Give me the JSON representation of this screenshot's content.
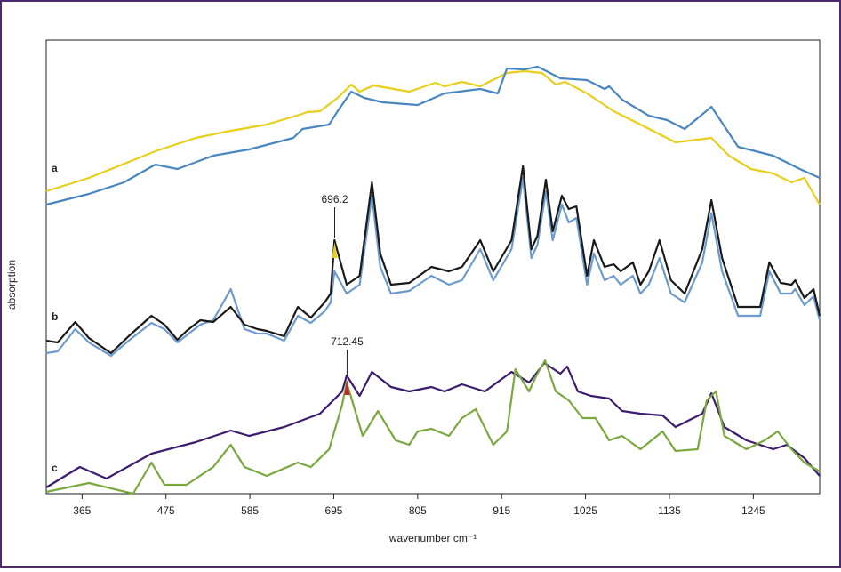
{
  "chart_data": {
    "type": "line",
    "y_label": "absorption",
    "x_label": "wavenumber cm⁻¹",
    "panel_labels": [
      "a",
      "b",
      "c"
    ],
    "xlim": [
      318,
      1332
    ],
    "xticks": [
      365,
      475,
      585,
      695,
      805,
      915,
      1025,
      1135,
      1245
    ],
    "ylim": [
      0,
      510
    ],
    "annotations": [
      {
        "x": 696.2,
        "label": "696.2",
        "color": "#e8cf1d"
      },
      {
        "x": 712.45,
        "label": "712.45",
        "color": "#c0282d"
      }
    ],
    "series": [
      {
        "color": "#e8cf1d",
        "x": [
          318,
          374,
          409,
          461,
          514,
          560,
          607,
          654,
          660,
          677,
          700,
          718,
          729,
          747,
          794,
          828,
          840,
          863,
          887,
          922,
          945,
          968,
          986,
          998,
          1027,
          1062,
          1097,
          1143,
          1190,
          1213,
          1242,
          1271,
          1295,
          1312,
          1332
        ],
        "values": [
          340,
          355,
          367,
          385,
          400,
          408,
          415,
          427,
          429,
          430,
          445,
          460,
          452,
          459,
          452,
          462,
          458,
          463,
          458,
          473,
          475,
          473,
          460,
          463,
          450,
          430,
          415,
          395,
          400,
          380,
          365,
          360,
          350,
          355,
          325
        ]
      },
      {
        "color": "#4a86c0",
        "x": [
          318,
          374,
          420,
          461,
          490,
          537,
          584,
          642,
          654,
          689,
          700,
          718,
          735,
          759,
          805,
          840,
          887,
          910,
          922,
          945,
          962,
          974,
          992,
          1027,
          1050,
          1056,
          1073,
          1108,
          1132,
          1155,
          1190,
          1225,
          1271,
          1306,
          1332
        ],
        "values": [
          325,
          337,
          350,
          370,
          365,
          380,
          387,
          400,
          410,
          415,
          430,
          452,
          445,
          440,
          437,
          450,
          455,
          450,
          478,
          477,
          480,
          475,
          467,
          465,
          455,
          458,
          443,
          425,
          420,
          410,
          435,
          390,
          380,
          365,
          355
        ]
      },
      {
        "color": "#6d9bcf",
        "x": [
          318,
          333,
          356,
          374,
          403,
          426,
          456,
          473,
          490,
          502,
          520,
          537,
          560,
          578,
          595,
          607,
          630,
          648,
          665,
          683,
          691,
          696,
          712,
          729,
          745,
          756,
          770,
          794,
          823,
          846,
          863,
          887,
          904,
          928,
          943,
          954,
          962,
          973,
          982,
          994,
          1003,
          1013,
          1027,
          1036,
          1050,
          1062,
          1071,
          1087,
          1097,
          1108,
          1122,
          1137,
          1155,
          1178,
          1190,
          1204,
          1225,
          1242,
          1254,
          1266,
          1281,
          1295,
          1300,
          1312,
          1324,
          1332
        ],
        "values": [
          158,
          160,
          185,
          170,
          155,
          172,
          192,
          185,
          170,
          178,
          190,
          195,
          230,
          185,
          180,
          180,
          172,
          200,
          192,
          205,
          215,
          250,
          225,
          235,
          335,
          255,
          225,
          228,
          245,
          235,
          240,
          275,
          240,
          275,
          355,
          265,
          280,
          340,
          285,
          325,
          305,
          310,
          235,
          270,
          240,
          245,
          235,
          245,
          225,
          235,
          265,
          225,
          215,
          260,
          315,
          250,
          200,
          200,
          200,
          250,
          225,
          225,
          230,
          212,
          222,
          195
        ]
      },
      {
        "color": "#1a1a1a",
        "x": [
          318,
          333,
          356,
          374,
          403,
          426,
          456,
          473,
          490,
          502,
          520,
          537,
          560,
          578,
          595,
          607,
          630,
          648,
          665,
          683,
          691,
          696,
          712,
          729,
          745,
          756,
          770,
          794,
          823,
          846,
          863,
          887,
          904,
          928,
          943,
          954,
          962,
          973,
          982,
          994,
          1003,
          1013,
          1027,
          1036,
          1050,
          1062,
          1071,
          1087,
          1097,
          1108,
          1122,
          1137,
          1155,
          1178,
          1190,
          1204,
          1225,
          1242,
          1254,
          1266,
          1281,
          1295,
          1300,
          1312,
          1324,
          1332
        ],
        "values": [
          172,
          170,
          193,
          175,
          158,
          177,
          200,
          190,
          173,
          183,
          195,
          193,
          210,
          190,
          185,
          183,
          177,
          210,
          198,
          215,
          225,
          285,
          235,
          245,
          350,
          270,
          235,
          237,
          255,
          250,
          255,
          285,
          250,
          285,
          368,
          275,
          290,
          353,
          295,
          335,
          320,
          323,
          245,
          285,
          255,
          258,
          250,
          260,
          235,
          250,
          285,
          240,
          225,
          275,
          330,
          265,
          210,
          210,
          210,
          260,
          237,
          235,
          240,
          220,
          230,
          200
        ]
      },
      {
        "color": "#3b1c6e",
        "x": [
          318,
          362,
          397,
          456,
          514,
          560,
          584,
          630,
          677,
          706,
          712,
          729,
          745,
          770,
          794,
          823,
          840,
          863,
          893,
          928,
          951,
          971,
          992,
          1001,
          1015,
          1032,
          1056,
          1073,
          1097,
          1126,
          1143,
          1178,
          1190,
          1207,
          1236,
          1271,
          1289,
          1312,
          1332
        ],
        "values": [
          7,
          30,
          17,
          45,
          58,
          71,
          65,
          75,
          90,
          115,
          133,
          110,
          137,
          120,
          115,
          120,
          115,
          123,
          115,
          137,
          125,
          147,
          135,
          143,
          115,
          110,
          107,
          93,
          90,
          88,
          75,
          90,
          113,
          75,
          60,
          50,
          55,
          40,
          20
        ]
      },
      {
        "color": "#7aa83c",
        "x": [
          318,
          374,
          432,
          456,
          473,
          502,
          537,
          560,
          578,
          607,
          648,
          665,
          689,
          706,
          712,
          733,
          753,
          776,
          794,
          805,
          823,
          846,
          863,
          881,
          904,
          922,
          933,
          951,
          960,
          972,
          986,
          1003,
          1021,
          1038,
          1056,
          1073,
          1097,
          1126,
          1143,
          1172,
          1184,
          1196,
          1207,
          1236,
          1260,
          1277,
          1295,
          1312,
          1332
        ],
        "values": [
          2,
          12,
          0,
          35,
          10,
          10,
          30,
          55,
          30,
          20,
          35,
          30,
          50,
          100,
          125,
          65,
          93,
          60,
          55,
          70,
          73,
          65,
          85,
          95,
          55,
          70,
          140,
          115,
          132,
          150,
          115,
          105,
          85,
          85,
          60,
          65,
          50,
          70,
          48,
          50,
          105,
          115,
          65,
          50,
          60,
          70,
          50,
          35,
          25
        ]
      }
    ]
  }
}
